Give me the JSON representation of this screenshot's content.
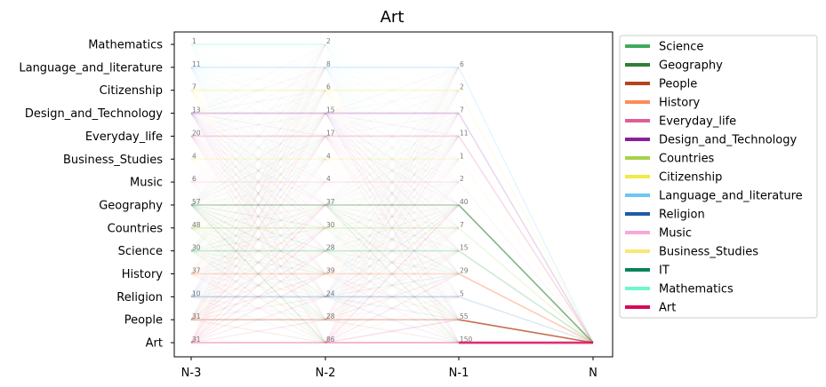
{
  "chart_data": {
    "type": "line",
    "title": "Art",
    "x_categories": [
      "N-3",
      "N-2",
      "N-1",
      "N"
    ],
    "y_categories": [
      "Mathematics",
      "Language_and_literature",
      "Citizenship",
      "Design_and_Technology",
      "Everyday_life",
      "Business_Studies",
      "Music",
      "Geography",
      "Countries",
      "Science",
      "History",
      "Religion",
      "People",
      "Art"
    ],
    "counts": {
      "N-3": {
        "Mathematics": 1,
        "Language_and_literature": 11,
        "Citizenship": 7,
        "Design_and_Technology": 13,
        "Everyday_life": 20,
        "Business_Studies": 4,
        "Music": 6,
        "Geography": 57,
        "Countries": 48,
        "Science": 30,
        "History": 37,
        "Religion": 10,
        "People": 31,
        "Art": 31
      },
      "N-2": {
        "Mathematics": 2,
        "Language_and_literature": 8,
        "Citizenship": 6,
        "Design_and_Technology": 15,
        "Everyday_life": 17,
        "Business_Studies": 4,
        "Music": 4,
        "Geography": 37,
        "Countries": 30,
        "Science": 28,
        "History": 39,
        "Religion": 24,
        "People": 28,
        "Art": 86
      },
      "N-1": {
        "Language_and_literature": 6,
        "Citizenship": 2,
        "Design_and_Technology": 7,
        "Everyday_life": 11,
        "Business_Studies": 1,
        "Music": 2,
        "Geography": 40,
        "Countries": 7,
        "Science": 15,
        "History": 29,
        "Religion": 5,
        "People": 55,
        "Art": 150
      }
    },
    "final_target": "Art",
    "legend": {
      "placement": "outside-right",
      "entries": [
        {
          "name": "Science",
          "color": "#41ab5d"
        },
        {
          "name": "Geography",
          "color": "#2e7d32"
        },
        {
          "name": "People",
          "color": "#b5451b"
        },
        {
          "name": "History",
          "color": "#fc8d59"
        },
        {
          "name": "Everyday_life",
          "color": "#de5f94"
        },
        {
          "name": "Design_and_Technology",
          "color": "#88209c"
        },
        {
          "name": "Countries",
          "color": "#a6d14b"
        },
        {
          "name": "Citizenship",
          "color": "#f2ea45"
        },
        {
          "name": "Language_and_literature",
          "color": "#6ec6f5"
        },
        {
          "name": "Religion",
          "color": "#1f5aa6"
        },
        {
          "name": "Music",
          "color": "#f9a8d8"
        },
        {
          "name": "Business_Studies",
          "color": "#fbe672"
        },
        {
          "name": "IT",
          "color": "#05835a"
        },
        {
          "name": "Mathematics",
          "color": "#6ff7d0"
        },
        {
          "name": "Art",
          "color": "#d8085a"
        }
      ]
    },
    "grid": false
  }
}
